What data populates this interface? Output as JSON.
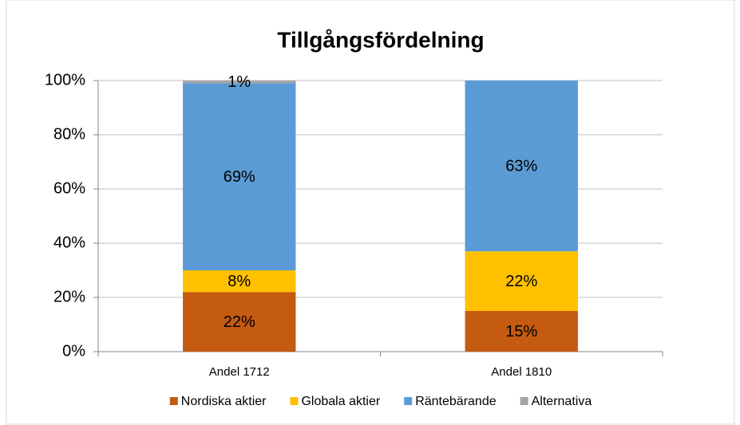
{
  "chart_data": {
    "type": "stacked_bar",
    "title": "Tillgångsfördelning",
    "categories": [
      "Andel 1712",
      "Andel 1810"
    ],
    "series": [
      {
        "name": "Nordiska aktier",
        "color": "#c55a11",
        "values": [
          22,
          15
        ],
        "value_labels": [
          "22%",
          "15%"
        ]
      },
      {
        "name": "Globala aktier",
        "color": "#ffc000",
        "values": [
          8,
          22
        ],
        "value_labels": [
          "8%",
          "22%"
        ]
      },
      {
        "name": "Räntebärande",
        "color": "#5b9bd5",
        "values": [
          69,
          63
        ],
        "value_labels": [
          "69%",
          "63%"
        ]
      },
      {
        "name": "Alternativa",
        "color": "#a5a5a5",
        "values": [
          1,
          0
        ],
        "value_labels": [
          "1%",
          null
        ]
      }
    ],
    "ylim": [
      0,
      100
    ],
    "yticks": [
      {
        "value": 0,
        "label": "0%"
      },
      {
        "value": 20,
        "label": "20%"
      },
      {
        "value": 40,
        "label": "40%"
      },
      {
        "value": 60,
        "label": "60%"
      },
      {
        "value": 80,
        "label": "80%"
      },
      {
        "value": 100,
        "label": "100%"
      }
    ],
    "grid": true,
    "legend": "bottom"
  }
}
